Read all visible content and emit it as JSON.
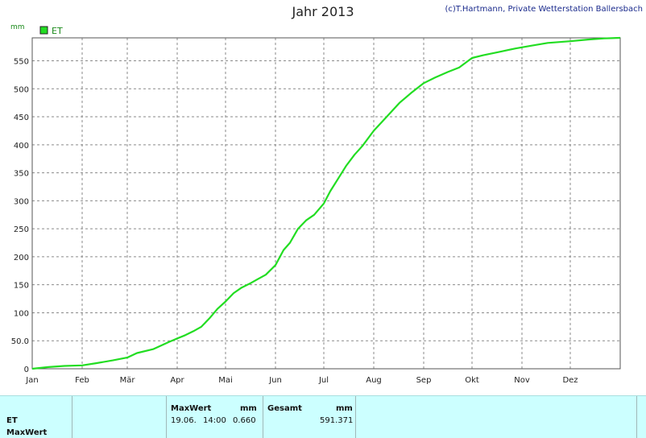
{
  "header": {
    "title": "Jahr 2013",
    "copyright": "(c)T.Hartmann, Private Wetterstation Ballersbach"
  },
  "chart_data": {
    "type": "line",
    "title": "Jahr 2013",
    "ylabel": "mm",
    "ylim": [
      0,
      591
    ],
    "yticks": [
      0,
      50,
      100,
      150,
      200,
      250,
      300,
      350,
      400,
      450,
      500,
      550
    ],
    "ytick_labels": [
      "0",
      "50.0",
      "100",
      "150",
      "200",
      "250",
      "300",
      "350",
      "400",
      "450",
      "500",
      "550"
    ],
    "x_tick_labels": [
      "Jan",
      "Feb",
      "Mär",
      "Apr",
      "Mai",
      "Jun",
      "Jul",
      "Aug",
      "Sep",
      "Okt",
      "Nov",
      "Dez"
    ],
    "x_tick_days": [
      0,
      31,
      59,
      90,
      120,
      151,
      181,
      212,
      243,
      273,
      304,
      334
    ],
    "xlim": [
      0,
      365
    ],
    "grid": true,
    "legend": "top-left",
    "series": [
      {
        "name": "ET",
        "color": "#22dd22",
        "x": [
          0,
          10,
          20,
          31,
          40,
          50,
          59,
          65,
          75,
          85,
          90,
          95,
          100,
          105,
          110,
          115,
          120,
          125,
          130,
          135,
          140,
          145,
          151,
          156,
          160,
          165,
          170,
          175,
          181,
          185,
          190,
          195,
          200,
          205,
          212,
          220,
          228,
          235,
          243,
          250,
          258,
          265,
          273,
          280,
          290,
          300,
          310,
          320,
          334,
          345,
          355,
          365
        ],
        "y": [
          0,
          3,
          5,
          6,
          10,
          15,
          20,
          28,
          35,
          48,
          54,
          60,
          67,
          75,
          90,
          107,
          120,
          135,
          145,
          152,
          160,
          168,
          185,
          212,
          225,
          250,
          265,
          275,
          295,
          317,
          340,
          363,
          382,
          398,
          425,
          450,
          475,
          492,
          510,
          520,
          530,
          538,
          555,
          560,
          566,
          572,
          577,
          582,
          585,
          588,
          590,
          591
        ]
      }
    ]
  },
  "stats": {
    "row_labels": [
      "ET",
      "MaxWert"
    ],
    "maxwert_header": "MaxWert",
    "maxwert_unit": "mm",
    "gesamt_header": "Gesamt",
    "gesamt_unit": "mm",
    "maxwert_date": "19.06.",
    "maxwert_time": "14:00",
    "maxwert_value": "0.660",
    "gesamt_value": "591.371"
  }
}
